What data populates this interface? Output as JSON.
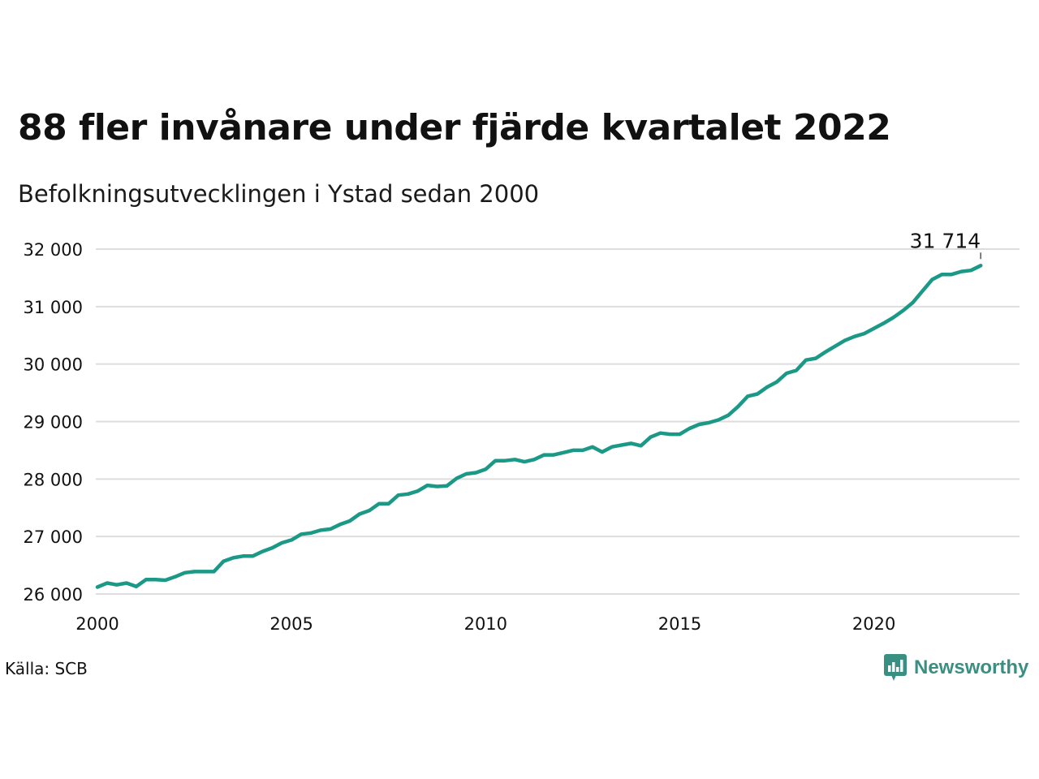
{
  "header": {
    "title": "88 fler invånare under fjärde kvartalet 2022",
    "subtitle": "Befolkningsutvecklingen i Ystad sedan 2000"
  },
  "footer": {
    "source": "Källa: SCB",
    "brand": "Newsworthy"
  },
  "colors": {
    "line": "#1b9986",
    "grid": "#dddddd",
    "brand": "#3a8f83"
  },
  "chart_data": {
    "type": "line",
    "title": "88 fler invånare under fjärde kvartalet 2022",
    "subtitle": "Befolkningsutvecklingen i Ystad sedan 2000",
    "xlabel": "",
    "ylabel": "",
    "xlim": [
      2000,
      2023.75
    ],
    "ylim": [
      26000,
      32000
    ],
    "x_ticks": [
      2000,
      2005,
      2010,
      2015,
      2020
    ],
    "x_tick_labels": [
      "2000",
      "2005",
      "2010",
      "2015",
      "2020"
    ],
    "y_ticks": [
      26000,
      27000,
      28000,
      29000,
      30000,
      31000,
      32000
    ],
    "y_tick_labels": [
      "26 000",
      "27 000",
      "28 000",
      "29 000",
      "30 000",
      "31 000",
      "32 000"
    ],
    "grid": "horizontal",
    "annotation": {
      "x": 2022.75,
      "y": 31714,
      "label": "31 714"
    },
    "series": [
      {
        "x": [
          2000.0,
          2000.25,
          2000.5,
          2000.75,
          2001.0,
          2001.25,
          2001.5,
          2001.75,
          2002.0,
          2002.25,
          2002.5,
          2002.75,
          2003.0,
          2003.25,
          2003.5,
          2003.75,
          2004.0,
          2004.25,
          2004.5,
          2004.75,
          2005.0,
          2005.25,
          2005.5,
          2005.75,
          2006.0,
          2006.25,
          2006.5,
          2006.75,
          2007.0,
          2007.25,
          2007.5,
          2007.75,
          2008.0,
          2008.25,
          2008.5,
          2008.75,
          2009.0,
          2009.25,
          2009.5,
          2009.75,
          2010.0,
          2010.25,
          2010.5,
          2010.75,
          2011.0,
          2011.25,
          2011.5,
          2011.75,
          2012.0,
          2012.25,
          2012.5,
          2012.75,
          2013.0,
          2013.25,
          2013.5,
          2013.75,
          2014.0,
          2014.25,
          2014.5,
          2014.75,
          2015.0,
          2015.25,
          2015.5,
          2015.75,
          2016.0,
          2016.25,
          2016.5,
          2016.75,
          2017.0,
          2017.25,
          2017.5,
          2017.75,
          2018.0,
          2018.25,
          2018.5,
          2018.75,
          2019.0,
          2019.25,
          2019.5,
          2019.75,
          2020.0,
          2020.25,
          2020.5,
          2020.75,
          2021.0,
          2021.25,
          2021.5,
          2021.75,
          2022.0,
          2022.25,
          2022.5,
          2022.75
        ],
        "values": [
          26120,
          26190,
          26160,
          26190,
          26130,
          26250,
          26250,
          26240,
          26300,
          26370,
          26390,
          26390,
          26390,
          26570,
          26630,
          26660,
          26660,
          26740,
          26800,
          26890,
          26940,
          27040,
          27060,
          27110,
          27130,
          27210,
          27270,
          27390,
          27450,
          27570,
          27570,
          27720,
          27740,
          27790,
          27890,
          27870,
          27880,
          28010,
          28090,
          28110,
          28170,
          28320,
          28320,
          28340,
          28300,
          28340,
          28420,
          28420,
          28460,
          28500,
          28500,
          28560,
          28470,
          28560,
          28590,
          28620,
          28580,
          28730,
          28800,
          28780,
          28780,
          28880,
          28950,
          28980,
          29030,
          29110,
          29260,
          29440,
          29480,
          29600,
          29690,
          29840,
          29890,
          30070,
          30100,
          30210,
          30310,
          30410,
          30480,
          30530,
          30620,
          30710,
          30810,
          30930,
          31070,
          31270,
          31470,
          31560,
          31560,
          31610,
          31630,
          31714
        ]
      }
    ]
  }
}
